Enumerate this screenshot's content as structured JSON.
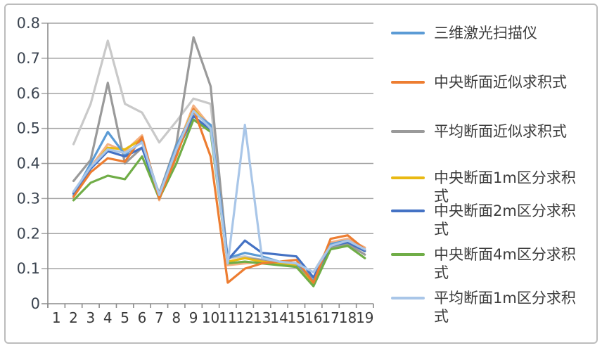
{
  "figure": {
    "background": "#ffffff",
    "border_color": "#bcbcbc",
    "grid_color": "#a3a3a3",
    "axis_color": "#8c8c8c"
  },
  "axes": {
    "y_ticks": [
      "0.8",
      "0.7",
      "0.6",
      "0.5",
      "0.4",
      "0.3",
      "0.2",
      "0.1",
      "0"
    ],
    "x_ticks": [
      "1",
      "2",
      "3",
      "4",
      "5",
      "6",
      "7",
      "8",
      "9",
      "10",
      "11",
      "12",
      "13",
      "14",
      "15",
      "16",
      "17",
      "18",
      "19"
    ]
  },
  "legend": [
    {
      "label": "三维激光扫描仪",
      "color": "#5b9bd5"
    },
    {
      "label": "中央断面近似求积式",
      "color": "#ed7d31"
    },
    {
      "label": "平均断面近似求积式",
      "color": "#9a9a9a"
    },
    {
      "label": "中央断面1m区分求积式",
      "color": "#e9b913"
    },
    {
      "label": "中央断面2m区分求积式",
      "color": "#4472c4"
    },
    {
      "label": "中央断面4m区分求积式",
      "color": "#70ad47"
    },
    {
      "label": "平均断面1m区分求积式",
      "color": "#a9c6e8"
    }
  ],
  "chart_data": {
    "type": "line",
    "x": [
      1,
      2,
      3,
      4,
      5,
      6,
      7,
      8,
      9,
      10,
      11,
      12,
      13,
      14,
      15,
      16,
      17,
      18,
      19
    ],
    "ylim": [
      0,
      0.8
    ],
    "ytick_step": 0.1,
    "grid": true,
    "legend_position": "right",
    "note": "Series 1-19 on x; first category has no data. Last two series are drawn in the plot but have no visible legend entry.",
    "series": [
      {
        "name": "三维激光扫描仪",
        "color": "#5b9bd5",
        "in_legend": true,
        "values": [
          null,
          0.31,
          0.4,
          0.49,
          0.425,
          0.465,
          0.31,
          0.45,
          0.545,
          0.51,
          0.13,
          0.145,
          0.135,
          0.12,
          0.115,
          0.065,
          0.17,
          0.18,
          0.155
        ]
      },
      {
        "name": "中央断面近似求积式",
        "color": "#ed7d31",
        "in_legend": true,
        "values": [
          null,
          0.305,
          0.375,
          0.415,
          0.405,
          0.475,
          0.3,
          0.42,
          0.555,
          0.42,
          0.06,
          0.1,
          0.115,
          0.12,
          0.125,
          0.06,
          0.185,
          0.195,
          0.155
        ]
      },
      {
        "name": "平均断面近似求积式",
        "color": "#9a9a9a",
        "in_legend": true,
        "values": [
          null,
          0.35,
          0.41,
          0.63,
          0.4,
          0.445,
          0.315,
          0.455,
          0.76,
          0.62,
          0.12,
          0.13,
          0.125,
          0.115,
          0.11,
          0.075,
          0.16,
          0.17,
          0.14
        ]
      },
      {
        "name": "中央断面1m区分求积式",
        "color": "#e9b913",
        "in_legend": true,
        "values": [
          null,
          0.315,
          0.385,
          0.445,
          0.44,
          0.47,
          0.305,
          0.44,
          0.555,
          0.5,
          0.12,
          0.13,
          0.12,
          0.115,
          0.11,
          0.055,
          0.165,
          0.175,
          0.15
        ]
      },
      {
        "name": "中央断面2m区分求积式",
        "color": "#4472c4",
        "in_legend": true,
        "values": [
          null,
          0.315,
          0.385,
          0.435,
          0.42,
          0.445,
          0.305,
          0.43,
          0.535,
          0.495,
          0.125,
          0.18,
          0.145,
          0.14,
          0.135,
          0.075,
          0.165,
          0.175,
          0.15
        ]
      },
      {
        "name": "中央断面4m区分求积式",
        "color": "#70ad47",
        "in_legend": true,
        "values": [
          null,
          0.295,
          0.345,
          0.365,
          0.355,
          0.42,
          0.3,
          0.4,
          0.525,
          0.49,
          0.115,
          0.12,
          0.115,
          0.11,
          0.105,
          0.05,
          0.155,
          0.165,
          0.13
        ]
      },
      {
        "name": "平均断面1m区分求积式",
        "color": "#a9c6e8",
        "in_legend": true,
        "values": [
          null,
          0.32,
          0.39,
          0.44,
          0.43,
          0.46,
          0.31,
          0.44,
          0.55,
          0.5,
          0.115,
          0.51,
          0.13,
          0.12,
          0.115,
          0.09,
          0.165,
          0.18,
          0.155
        ]
      },
      {
        "name": "",
        "color": "#f4b183",
        "in_legend": false,
        "values": [
          null,
          0.315,
          0.39,
          0.455,
          0.435,
          0.48,
          0.295,
          0.44,
          0.565,
          0.505,
          0.11,
          0.115,
          0.12,
          0.115,
          0.11,
          0.06,
          0.175,
          0.185,
          0.16
        ]
      },
      {
        "name": "",
        "color": "#c9c9c9",
        "in_legend": false,
        "values": [
          null,
          0.455,
          0.57,
          0.75,
          0.57,
          0.545,
          0.46,
          0.52,
          0.585,
          0.57,
          0.13,
          0.135,
          0.125,
          0.12,
          0.115,
          0.09,
          0.17,
          0.18,
          0.155
        ]
      }
    ]
  }
}
